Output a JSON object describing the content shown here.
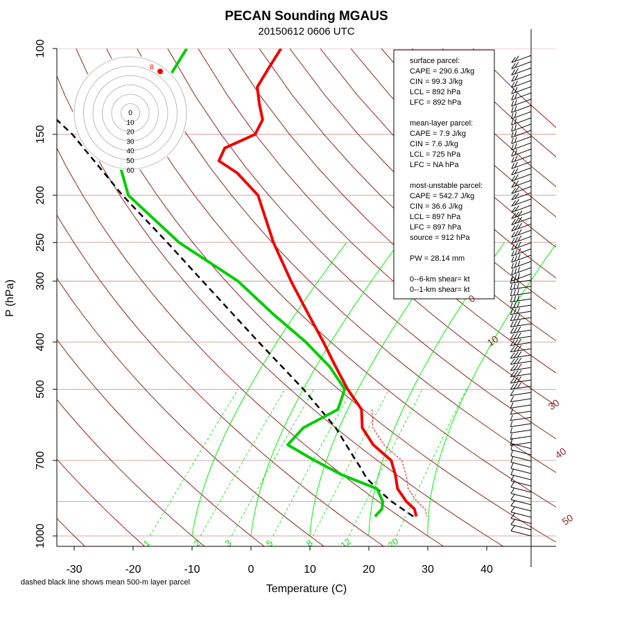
{
  "chart_data": {
    "type": "skewt-logp",
    "title": "PECAN Sounding MGAUS",
    "subtitle": "20150612 0606 UTC",
    "xlabel": "Temperature (C)",
    "ylabel": "P (hPa)",
    "footnote": "dashed black line shows mean 500-m layer parcel",
    "x_ticks": [
      -30,
      -20,
      -10,
      0,
      10,
      20,
      30,
      40
    ],
    "x_tick_labels": [
      "-30",
      "-20",
      "-10",
      "0",
      "10",
      "20",
      "30",
      "40"
    ],
    "xlim": [
      -33,
      48
    ],
    "y_ticks": [
      100,
      150,
      200,
      250,
      300,
      400,
      500,
      700,
      1000
    ],
    "y_tick_labels": [
      "100",
      "150",
      "200",
      "250",
      "300",
      "400",
      "500",
      "700",
      "1000"
    ],
    "ylim": [
      1025,
      100
    ],
    "isobars": [
      100,
      150,
      200,
      250,
      300,
      400,
      500,
      700,
      850,
      1000
    ],
    "dry_adiabats_label_values": [
      0,
      10,
      30,
      40,
      50
    ],
    "dry_adiabats_label_text": [
      "0",
      "10",
      "30",
      "40",
      "50"
    ],
    "mixing_ratio_values": [
      1,
      2,
      3,
      5,
      8,
      12,
      20
    ],
    "mixing_ratio_labels": [
      "1",
      "2",
      "3",
      "5",
      "8",
      "12",
      "20"
    ],
    "temperature_profile": [
      {
        "p": 100,
        "t": -71
      },
      {
        "p": 110,
        "t": -70
      },
      {
        "p": 120,
        "t": -69
      },
      {
        "p": 130,
        "t": -66
      },
      {
        "p": 140,
        "t": -63
      },
      {
        "p": 150,
        "t": -62
      },
      {
        "p": 160,
        "t": -65
      },
      {
        "p": 170,
        "t": -64
      },
      {
        "p": 180,
        "t": -59
      },
      {
        "p": 200,
        "t": -52
      },
      {
        "p": 250,
        "t": -42
      },
      {
        "p": 300,
        "t": -33
      },
      {
        "p": 350,
        "t": -25
      },
      {
        "p": 400,
        "t": -18
      },
      {
        "p": 450,
        "t": -12
      },
      {
        "p": 500,
        "t": -6.5
      },
      {
        "p": 550,
        "t": -1
      },
      {
        "p": 600,
        "t": 2
      },
      {
        "p": 650,
        "t": 6.5
      },
      {
        "p": 700,
        "t": 12
      },
      {
        "p": 750,
        "t": 15
      },
      {
        "p": 800,
        "t": 17.5
      },
      {
        "p": 850,
        "t": 21
      },
      {
        "p": 880,
        "t": 23.5
      },
      {
        "p": 912,
        "t": 25
      }
    ],
    "dewpoint_profile": [
      {
        "p": 100,
        "t": -87
      },
      {
        "p": 120,
        "t": -85
      },
      {
        "p": 135,
        "t": -84
      },
      {
        "p": 145,
        "t": -77
      },
      {
        "p": 150,
        "t": -76
      },
      {
        "p": 160,
        "t": -79
      },
      {
        "p": 170,
        "t": -81
      },
      {
        "p": 200,
        "t": -74
      },
      {
        "p": 250,
        "t": -58
      },
      {
        "p": 300,
        "t": -42
      },
      {
        "p": 350,
        "t": -31
      },
      {
        "p": 400,
        "t": -21
      },
      {
        "p": 450,
        "t": -13
      },
      {
        "p": 500,
        "t": -7
      },
      {
        "p": 550,
        "t": -5
      },
      {
        "p": 600,
        "t": -8
      },
      {
        "p": 650,
        "t": -8
      },
      {
        "p": 700,
        "t": -1
      },
      {
        "p": 750,
        "t": 6
      },
      {
        "p": 800,
        "t": 14
      },
      {
        "p": 850,
        "t": 17
      },
      {
        "p": 880,
        "t": 18
      },
      {
        "p": 912,
        "t": 18
      }
    ],
    "mean_layer_parcel": [
      {
        "p": 912,
        "t": 24.5
      },
      {
        "p": 850,
        "t": 18.5
      },
      {
        "p": 800,
        "t": 14
      },
      {
        "p": 760,
        "t": 10.5
      },
      {
        "p": 725,
        "t": 8
      },
      {
        "p": 700,
        "t": 6
      },
      {
        "p": 600,
        "t": -2.5
      },
      {
        "p": 500,
        "t": -14
      },
      {
        "p": 400,
        "t": -29
      },
      {
        "p": 300,
        "t": -48
      },
      {
        "p": 250,
        "t": -60
      },
      {
        "p": 200,
        "t": -75
      },
      {
        "p": 150,
        "t": -93
      },
      {
        "p": 100,
        "t": -122
      }
    ],
    "hodograph_rings": [
      "0",
      "10",
      "20",
      "30",
      "40",
      "50",
      "60"
    ],
    "hodograph_point_label": "8"
  },
  "parameters": {
    "surface_title": "surface parcel:",
    "surface_cape": "CAPE = 290.6 J/kg",
    "surface_cin": "CIN = 99.3 J/kg",
    "surface_lcl": "LCL = 892 hPa",
    "surface_lfc": "LFC = 892 hPa",
    "mean_title": "mean-layer parcel:",
    "mean_cape": "CAPE = 7.9 J/kg",
    "mean_cin": "CIN = 7.6 J/kg",
    "mean_lcl": "LCL = 725 hPa",
    "mean_lfc": "LFC = NA hPa",
    "mu_title": "most-unstable parcel:",
    "mu_cape": "CAPE = 542.7 J/kg",
    "mu_cin": "CIN = 36.6 J/kg",
    "mu_lcl": "LCL = 897 hPa",
    "mu_lfc": "LFC = 897 hPa",
    "mu_source": "source = 912 hPa",
    "pw": "PW =  28.14 mm",
    "shear_06": "0--6-km shear=  kt",
    "shear_01": "0--1-km shear=  kt"
  },
  "colors": {
    "temperature": "#ee0000",
    "dewpoint": "#00cc00",
    "isobar": "#cc8888",
    "adiabat": "#8b2323",
    "mixing_ratio": "#00dd00",
    "parcel": "#000000"
  }
}
